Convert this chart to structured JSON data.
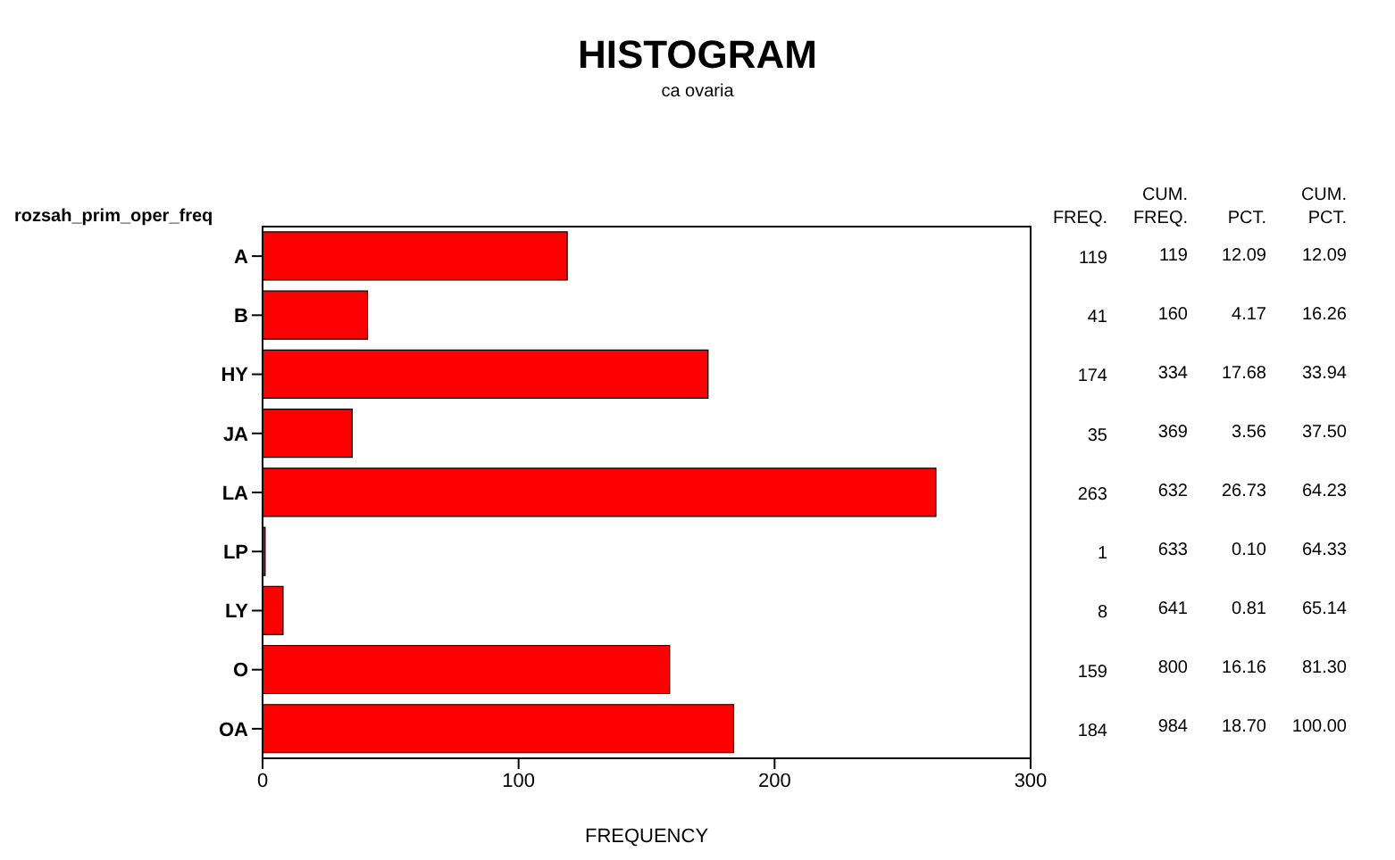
{
  "chart_data": {
    "type": "bar",
    "orientation": "horizontal",
    "title": "HISTOGRAM",
    "subtitle": "ca ovaria",
    "ylabel": "rozsah_prim_oper_freq",
    "xlabel": "FREQUENCY",
    "categories": [
      "A",
      "B",
      "HY",
      "JA",
      "LA",
      "LP",
      "LY",
      "O",
      "OA"
    ],
    "values": [
      119,
      41,
      174,
      35,
      263,
      1,
      8,
      159,
      184
    ],
    "color": "#ff0000",
    "xlim": [
      0,
      300
    ],
    "xticks": [
      0,
      100,
      200,
      300
    ],
    "data_labels": true,
    "annotations": [
      "FREQ.",
      "CUM. FREQ.",
      "PCT.",
      "CUM. PCT.",
      "119",
      "12.09",
      "12.09",
      "160",
      "4.17",
      "16.26",
      "334",
      "17.68",
      "33.94",
      "369",
      "3.56",
      "37.50",
      "632",
      "26.73",
      "64.23",
      "633",
      "0.10",
      "64.33",
      "641",
      "0.81",
      "65.14",
      "800",
      "16.16",
      "81.30",
      "984",
      "18.70",
      "100.00"
    ]
  }
}
